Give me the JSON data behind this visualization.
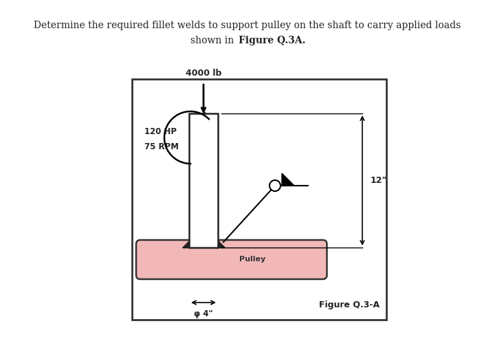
{
  "title_line1": "Determine the required fillet welds to support pulley on the shaft to carry applied loads",
  "title_line2_normal": "shown in ",
  "title_line2_bold": "Figure Q.3A.",
  "bg_color": "#ffffff",
  "shaft_color": "#ffffff",
  "shaft_border": "#222222",
  "pulley_color": "#f2b8b8",
  "pulley_border": "#333333",
  "label_4000": "4000 lb",
  "label_hp": "120 HP",
  "label_rpm": "75 RPM",
  "label_12": "12\"",
  "label_phi4": "φ 4\"",
  "label_pulley": "Pulley",
  "label_figure": "Figure Q.3-A"
}
